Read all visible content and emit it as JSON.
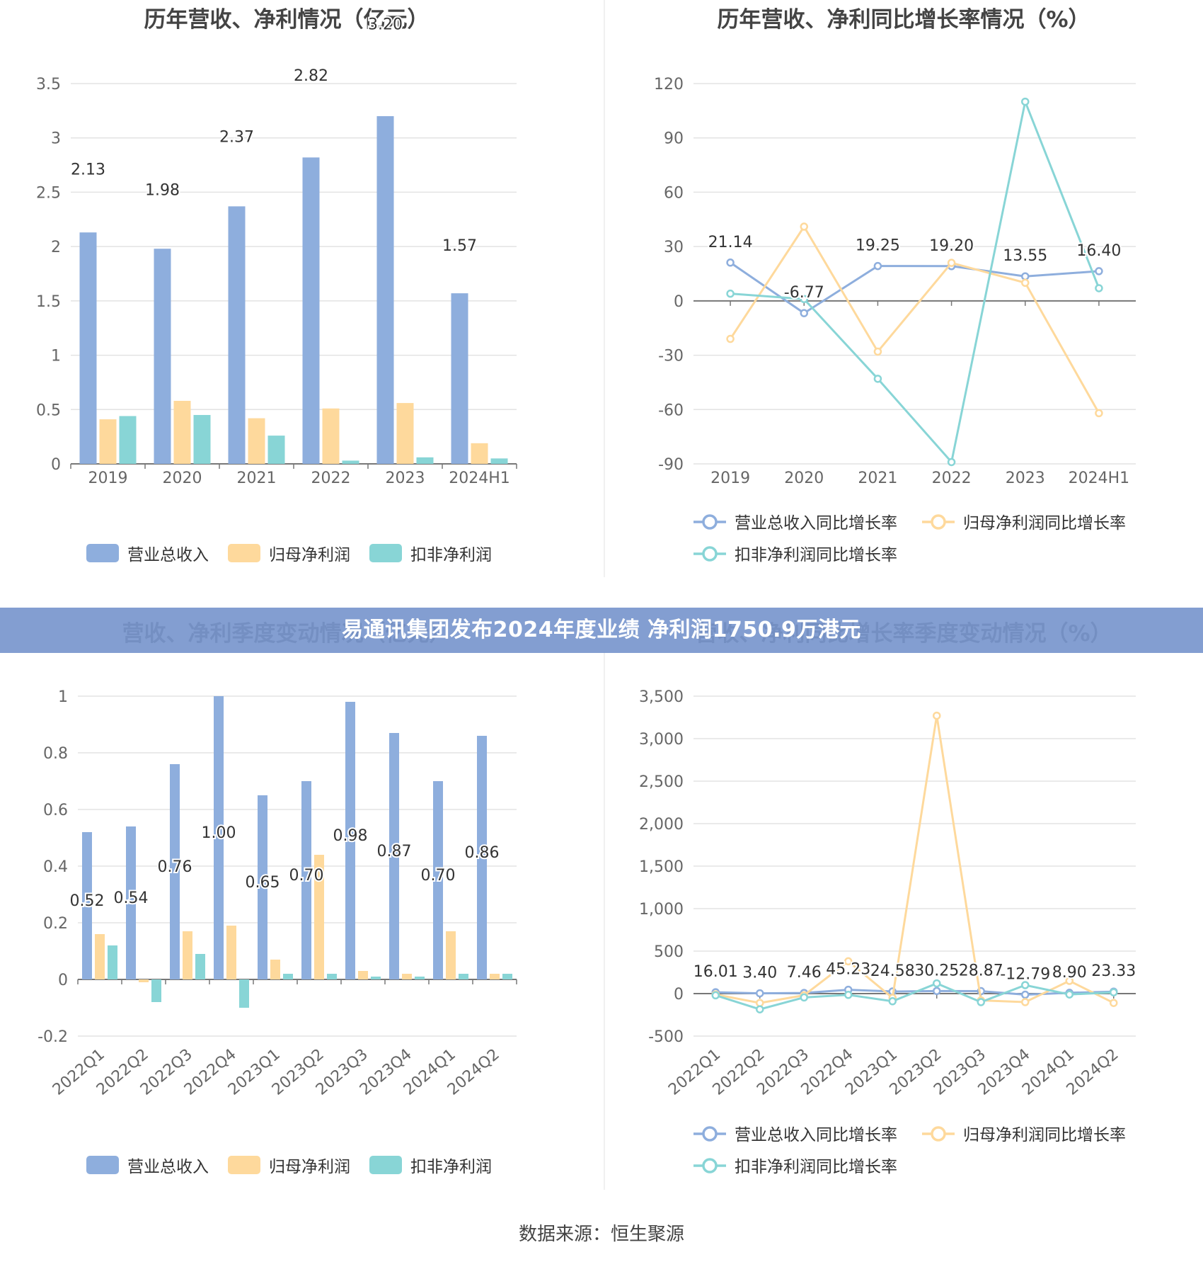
{
  "banner_text": "易通讯集团发布2024年度业绩 净利润1750.9万港元",
  "source_text": "数据来源：恒生聚源",
  "colors": {
    "revenue": "#8eaedd",
    "net_profit": "#fed99c",
    "deducted_profit": "#88d5d6"
  },
  "chart_data": [
    {
      "type": "bar",
      "title": "历年营收、净利情况（亿元）",
      "categories": [
        "2019",
        "2020",
        "2021",
        "2022",
        "2023",
        "2024H1"
      ],
      "ylim": [
        0,
        3.5
      ],
      "yticks": [
        "0",
        "0.5",
        "1",
        "1.5",
        "2",
        "2.5",
        "3",
        "3.5"
      ],
      "ytick_values": [
        0,
        0.5,
        1,
        1.5,
        2,
        2.5,
        3,
        3.5
      ],
      "legend_position": "bottom",
      "grid": true,
      "series": [
        {
          "name": "营业总收入",
          "values": [
            2.13,
            1.98,
            2.37,
            2.82,
            3.2,
            1.57
          ],
          "labels": [
            "2.13",
            "1.98",
            "2.37",
            "2.82",
            "3.20",
            "1.57"
          ]
        },
        {
          "name": "归母净利润",
          "values": [
            0.41,
            0.58,
            0.42,
            0.51,
            0.56,
            0.19
          ]
        },
        {
          "name": "扣非净利润",
          "values": [
            0.44,
            0.45,
            0.26,
            0.03,
            0.06,
            0.05
          ]
        }
      ]
    },
    {
      "type": "line",
      "title": "历年营收、净利同比增长率情况（%）",
      "categories": [
        "2019",
        "2020",
        "2021",
        "2022",
        "2023",
        "2024H1"
      ],
      "ylim": [
        -90,
        120
      ],
      "yticks": [
        "-90",
        "-60",
        "-30",
        "0",
        "30",
        "60",
        "90",
        "120"
      ],
      "ytick_values": [
        -90,
        -60,
        -30,
        0,
        30,
        60,
        90,
        120
      ],
      "legend_position": "bottom",
      "grid": true,
      "series": [
        {
          "name": "营业总收入同比增长率",
          "values": [
            21.14,
            -6.77,
            19.25,
            19.2,
            13.55,
            16.4
          ],
          "labels": [
            "21.14",
            "-6.77",
            "19.25",
            "19.20",
            "13.55",
            "16.40"
          ]
        },
        {
          "name": "归母净利润同比增长率",
          "values": [
            -21,
            41,
            -28,
            21,
            10,
            -62
          ]
        },
        {
          "name": "扣非净利润同比增长率",
          "values": [
            4,
            1,
            -43,
            -89,
            110,
            7
          ]
        }
      ]
    },
    {
      "type": "bar",
      "title": "营收、净利季度变动情况（亿元）",
      "categories": [
        "2022Q1",
        "2022Q2",
        "2022Q3",
        "2022Q4",
        "2023Q1",
        "2023Q2",
        "2023Q3",
        "2023Q4",
        "2024Q1",
        "2024Q2"
      ],
      "ylim": [
        -0.2,
        1
      ],
      "yticks": [
        "-0.2",
        "0",
        "0.2",
        "0.4",
        "0.6",
        "0.8",
        "1"
      ],
      "ytick_values": [
        -0.2,
        0,
        0.2,
        0.4,
        0.6,
        0.8,
        1
      ],
      "legend_position": "bottom",
      "grid": true,
      "series": [
        {
          "name": "营业总收入",
          "values": [
            0.52,
            0.54,
            0.76,
            1.0,
            0.65,
            0.7,
            0.98,
            0.87,
            0.7,
            0.86
          ],
          "labels": [
            "0.52",
            "0.54",
            "0.76",
            "1.00",
            "0.65",
            "0.70",
            "0.98",
            "0.87",
            "0.70",
            "0.86"
          ]
        },
        {
          "name": "归母净利润",
          "values": [
            0.16,
            -0.01,
            0.17,
            0.19,
            0.07,
            0.44,
            0.03,
            0.02,
            0.17,
            0.02
          ]
        },
        {
          "name": "扣非净利润",
          "values": [
            0.12,
            -0.08,
            0.09,
            -0.1,
            0.02,
            0.02,
            0.01,
            0.01,
            0.02,
            0.02
          ]
        }
      ]
    },
    {
      "type": "line",
      "title": "营收、净利同比增长率季度变动情况（%）",
      "categories": [
        "2022Q1",
        "2022Q2",
        "2022Q3",
        "2022Q4",
        "2023Q1",
        "2023Q2",
        "2023Q3",
        "2023Q4",
        "2024Q1",
        "2024Q2"
      ],
      "ylim": [
        -500,
        3500
      ],
      "yticks": [
        "-500",
        "0",
        "500",
        "1,000",
        "1,500",
        "2,000",
        "2,500",
        "3,000",
        "3,500"
      ],
      "ytick_values": [
        -500,
        0,
        500,
        1000,
        1500,
        2000,
        2500,
        3000,
        3500
      ],
      "legend_position": "bottom",
      "grid": true,
      "series": [
        {
          "name": "营业总收入同比增长率",
          "values": [
            16.01,
            3.4,
            7.46,
            45.23,
            24.58,
            30.25,
            28.87,
            -12.79,
            8.9,
            23.33
          ],
          "labels": [
            "16.01",
            "3.40",
            "7.46",
            "45.23",
            "24.58",
            "30.25",
            "28.87",
            "-12.79",
            "8.90",
            "23.33"
          ]
        },
        {
          "name": "归母净利润同比增长率",
          "values": [
            -10,
            -110,
            -20,
            380,
            -50,
            3270,
            -80,
            -100,
            150,
            -110
          ]
        },
        {
          "name": "扣非净利润同比增长率",
          "values": [
            -20,
            -185,
            -45,
            -15,
            -90,
            120,
            -100,
            100,
            -10,
            15
          ]
        }
      ]
    }
  ]
}
